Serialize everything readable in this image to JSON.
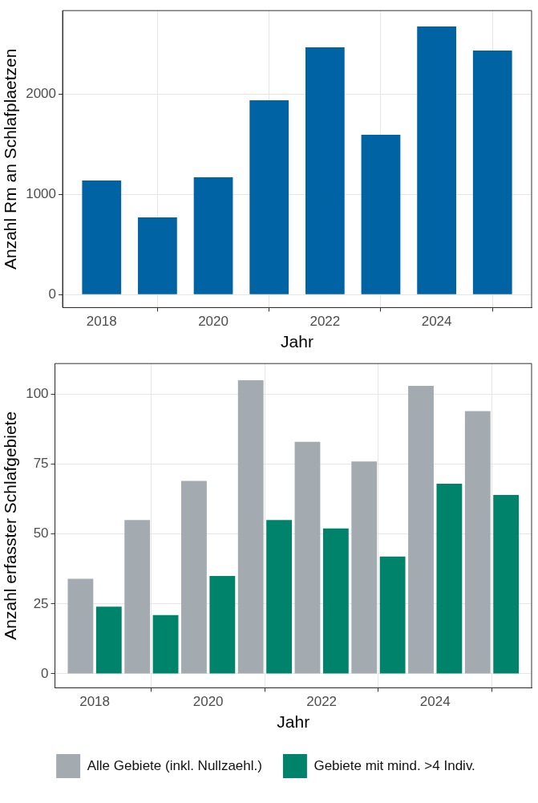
{
  "chart_data": [
    {
      "type": "bar",
      "xlabel": "Jahr",
      "ylabel": "Anzahl Rm an Schlafplaetzen",
      "x": [
        2018,
        2019,
        2020,
        2021,
        2022,
        2023,
        2024,
        2025
      ],
      "xlim": [
        2017.3,
        2025.7
      ],
      "xticks": [
        2018,
        2020,
        2022,
        2024
      ],
      "ylim": [
        -130,
        2830
      ],
      "yticks": [
        0,
        1000,
        2000
      ],
      "grid": true,
      "legend": false,
      "series": [
        {
          "color": "#0063a3",
          "values": [
            1136,
            768,
            1168,
            1936,
            2464,
            1592,
            2672,
            2432
          ]
        }
      ]
    },
    {
      "type": "bar",
      "xlabel": "Jahr",
      "ylabel": "Anzahl erfasster Schlafgebiete",
      "x": [
        2018,
        2019,
        2020,
        2021,
        2022,
        2023,
        2024,
        2025
      ],
      "xlim": [
        2017.3,
        2025.7
      ],
      "xticks": [
        2018,
        2020,
        2022,
        2024
      ],
      "ylim": [
        -5,
        111
      ],
      "yticks": [
        0,
        25,
        50,
        75,
        100
      ],
      "grid": true,
      "legend": "bottom",
      "series": [
        {
          "name": "Alle Gebiete (inkl. Nullzaehl.)",
          "color": "#a3abb1",
          "values": [
            34,
            55,
            69,
            105,
            83,
            76,
            103,
            94
          ]
        },
        {
          "name": "Gebiete mit mind. >4 Indiv.",
          "color": "#00836b",
          "values": [
            24,
            21,
            35,
            55,
            52,
            42,
            68,
            64
          ]
        }
      ]
    }
  ]
}
